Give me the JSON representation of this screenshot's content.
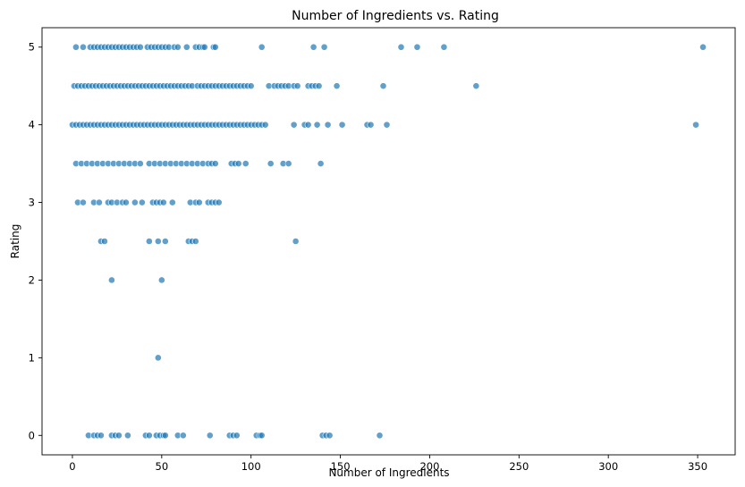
{
  "chart_data": {
    "type": "scatter",
    "title": "Number of Ingredients vs. Rating",
    "xlabel": "Number of Ingredients",
    "ylabel": "Rating",
    "xlim": [
      -17,
      371
    ],
    "ylim": [
      -0.25,
      5.25
    ],
    "xticks": [
      0,
      50,
      100,
      150,
      200,
      250,
      300,
      350
    ],
    "yticks": [
      0,
      1,
      2,
      3,
      4,
      5
    ],
    "grid": false,
    "legend": "none",
    "color": "#1f77b4",
    "series": [
      {
        "points": [
          [
            2,
            5
          ],
          [
            6,
            5
          ],
          [
            10,
            5
          ],
          [
            12,
            5
          ],
          [
            14,
            5
          ],
          [
            16,
            5
          ],
          [
            18,
            5
          ],
          [
            20,
            5
          ],
          [
            22,
            5
          ],
          [
            24,
            5
          ],
          [
            26,
            5
          ],
          [
            28,
            5
          ],
          [
            30,
            5
          ],
          [
            32,
            5
          ],
          [
            34,
            5
          ],
          [
            36,
            5
          ],
          [
            38,
            5
          ],
          [
            42,
            5
          ],
          [
            44,
            5
          ],
          [
            46,
            5
          ],
          [
            48,
            5
          ],
          [
            50,
            5
          ],
          [
            52,
            5
          ],
          [
            54,
            5
          ],
          [
            57,
            5
          ],
          [
            59,
            5
          ],
          [
            64,
            5
          ],
          [
            69,
            5
          ],
          [
            71,
            5
          ],
          [
            73,
            5
          ],
          [
            74,
            5
          ],
          [
            79,
            5
          ],
          [
            80,
            5
          ],
          [
            106,
            5
          ],
          [
            135,
            5
          ],
          [
            141,
            5
          ],
          [
            184,
            5
          ],
          [
            193,
            5
          ],
          [
            208,
            5
          ],
          [
            353,
            5
          ],
          [
            1,
            4.5
          ],
          [
            3,
            4.5
          ],
          [
            5,
            4.5
          ],
          [
            7,
            4.5
          ],
          [
            9,
            4.5
          ],
          [
            11,
            4.5
          ],
          [
            13,
            4.5
          ],
          [
            15,
            4.5
          ],
          [
            17,
            4.5
          ],
          [
            19,
            4.5
          ],
          [
            21,
            4.5
          ],
          [
            23,
            4.5
          ],
          [
            25,
            4.5
          ],
          [
            27,
            4.5
          ],
          [
            29,
            4.5
          ],
          [
            31,
            4.5
          ],
          [
            33,
            4.5
          ],
          [
            35,
            4.5
          ],
          [
            37,
            4.5
          ],
          [
            39,
            4.5
          ],
          [
            41,
            4.5
          ],
          [
            43,
            4.5
          ],
          [
            45,
            4.5
          ],
          [
            47,
            4.5
          ],
          [
            49,
            4.5
          ],
          [
            51,
            4.5
          ],
          [
            53,
            4.5
          ],
          [
            55,
            4.5
          ],
          [
            57,
            4.5
          ],
          [
            59,
            4.5
          ],
          [
            61,
            4.5
          ],
          [
            63,
            4.5
          ],
          [
            65,
            4.5
          ],
          [
            67,
            4.5
          ],
          [
            70,
            4.5
          ],
          [
            72,
            4.5
          ],
          [
            74,
            4.5
          ],
          [
            76,
            4.5
          ],
          [
            78,
            4.5
          ],
          [
            80,
            4.5
          ],
          [
            82,
            4.5
          ],
          [
            84,
            4.5
          ],
          [
            86,
            4.5
          ],
          [
            88,
            4.5
          ],
          [
            90,
            4.5
          ],
          [
            92,
            4.5
          ],
          [
            94,
            4.5
          ],
          [
            96,
            4.5
          ],
          [
            98,
            4.5
          ],
          [
            100,
            4.5
          ],
          [
            110,
            4.5
          ],
          [
            113,
            4.5
          ],
          [
            115,
            4.5
          ],
          [
            117,
            4.5
          ],
          [
            119,
            4.5
          ],
          [
            121,
            4.5
          ],
          [
            124,
            4.5
          ],
          [
            126,
            4.5
          ],
          [
            132,
            4.5
          ],
          [
            134,
            4.5
          ],
          [
            136,
            4.5
          ],
          [
            138,
            4.5
          ],
          [
            148,
            4.5
          ],
          [
            174,
            4.5
          ],
          [
            226,
            4.5
          ],
          [
            0,
            4
          ],
          [
            2,
            4
          ],
          [
            4,
            4
          ],
          [
            6,
            4
          ],
          [
            8,
            4
          ],
          [
            10,
            4
          ],
          [
            12,
            4
          ],
          [
            14,
            4
          ],
          [
            16,
            4
          ],
          [
            18,
            4
          ],
          [
            20,
            4
          ],
          [
            22,
            4
          ],
          [
            24,
            4
          ],
          [
            26,
            4
          ],
          [
            28,
            4
          ],
          [
            30,
            4
          ],
          [
            32,
            4
          ],
          [
            34,
            4
          ],
          [
            36,
            4
          ],
          [
            38,
            4
          ],
          [
            40,
            4
          ],
          [
            42,
            4
          ],
          [
            44,
            4
          ],
          [
            46,
            4
          ],
          [
            48,
            4
          ],
          [
            50,
            4
          ],
          [
            52,
            4
          ],
          [
            54,
            4
          ],
          [
            56,
            4
          ],
          [
            58,
            4
          ],
          [
            60,
            4
          ],
          [
            62,
            4
          ],
          [
            64,
            4
          ],
          [
            66,
            4
          ],
          [
            68,
            4
          ],
          [
            70,
            4
          ],
          [
            72,
            4
          ],
          [
            74,
            4
          ],
          [
            76,
            4
          ],
          [
            78,
            4
          ],
          [
            80,
            4
          ],
          [
            82,
            4
          ],
          [
            84,
            4
          ],
          [
            86,
            4
          ],
          [
            88,
            4
          ],
          [
            90,
            4
          ],
          [
            92,
            4
          ],
          [
            94,
            4
          ],
          [
            96,
            4
          ],
          [
            98,
            4
          ],
          [
            100,
            4
          ],
          [
            102,
            4
          ],
          [
            104,
            4
          ],
          [
            106,
            4
          ],
          [
            108,
            4
          ],
          [
            124,
            4
          ],
          [
            130,
            4
          ],
          [
            132,
            4
          ],
          [
            137,
            4
          ],
          [
            143,
            4
          ],
          [
            151,
            4
          ],
          [
            165,
            4
          ],
          [
            167,
            4
          ],
          [
            176,
            4
          ],
          [
            349,
            4
          ],
          [
            2,
            3.5
          ],
          [
            5,
            3.5
          ],
          [
            8,
            3.5
          ],
          [
            11,
            3.5
          ],
          [
            14,
            3.5
          ],
          [
            17,
            3.5
          ],
          [
            20,
            3.5
          ],
          [
            23,
            3.5
          ],
          [
            26,
            3.5
          ],
          [
            29,
            3.5
          ],
          [
            32,
            3.5
          ],
          [
            35,
            3.5
          ],
          [
            38,
            3.5
          ],
          [
            43,
            3.5
          ],
          [
            46,
            3.5
          ],
          [
            49,
            3.5
          ],
          [
            52,
            3.5
          ],
          [
            55,
            3.5
          ],
          [
            58,
            3.5
          ],
          [
            61,
            3.5
          ],
          [
            64,
            3.5
          ],
          [
            67,
            3.5
          ],
          [
            70,
            3.5
          ],
          [
            73,
            3.5
          ],
          [
            76,
            3.5
          ],
          [
            78,
            3.5
          ],
          [
            80,
            3.5
          ],
          [
            89,
            3.5
          ],
          [
            91,
            3.5
          ],
          [
            93,
            3.5
          ],
          [
            97,
            3.5
          ],
          [
            111,
            3.5
          ],
          [
            118,
            3.5
          ],
          [
            121,
            3.5
          ],
          [
            139,
            3.5
          ],
          [
            3,
            3
          ],
          [
            6,
            3
          ],
          [
            12,
            3
          ],
          [
            15,
            3
          ],
          [
            20,
            3
          ],
          [
            22,
            3
          ],
          [
            25,
            3
          ],
          [
            28,
            3
          ],
          [
            30,
            3
          ],
          [
            35,
            3
          ],
          [
            39,
            3
          ],
          [
            45,
            3
          ],
          [
            47,
            3
          ],
          [
            49,
            3
          ],
          [
            51,
            3
          ],
          [
            56,
            3
          ],
          [
            66,
            3
          ],
          [
            69,
            3
          ],
          [
            71,
            3
          ],
          [
            76,
            3
          ],
          [
            78,
            3
          ],
          [
            80,
            3
          ],
          [
            82,
            3
          ],
          [
            16,
            2.5
          ],
          [
            18,
            2.5
          ],
          [
            43,
            2.5
          ],
          [
            48,
            2.5
          ],
          [
            52,
            2.5
          ],
          [
            65,
            2.5
          ],
          [
            67,
            2.5
          ],
          [
            69,
            2.5
          ],
          [
            125,
            2.5
          ],
          [
            22,
            2
          ],
          [
            50,
            2
          ],
          [
            48,
            1
          ],
          [
            9,
            0
          ],
          [
            12,
            0
          ],
          [
            14,
            0
          ],
          [
            16,
            0
          ],
          [
            22,
            0
          ],
          [
            24,
            0
          ],
          [
            26,
            0
          ],
          [
            31,
            0
          ],
          [
            41,
            0
          ],
          [
            43,
            0
          ],
          [
            47,
            0
          ],
          [
            49,
            0
          ],
          [
            51,
            0
          ],
          [
            52,
            0
          ],
          [
            59,
            0
          ],
          [
            62,
            0
          ],
          [
            77,
            0
          ],
          [
            88,
            0
          ],
          [
            90,
            0
          ],
          [
            92,
            0
          ],
          [
            103,
            0
          ],
          [
            105,
            0
          ],
          [
            106,
            0
          ],
          [
            140,
            0
          ],
          [
            142,
            0
          ],
          [
            144,
            0
          ],
          [
            172,
            0
          ]
        ]
      }
    ]
  }
}
